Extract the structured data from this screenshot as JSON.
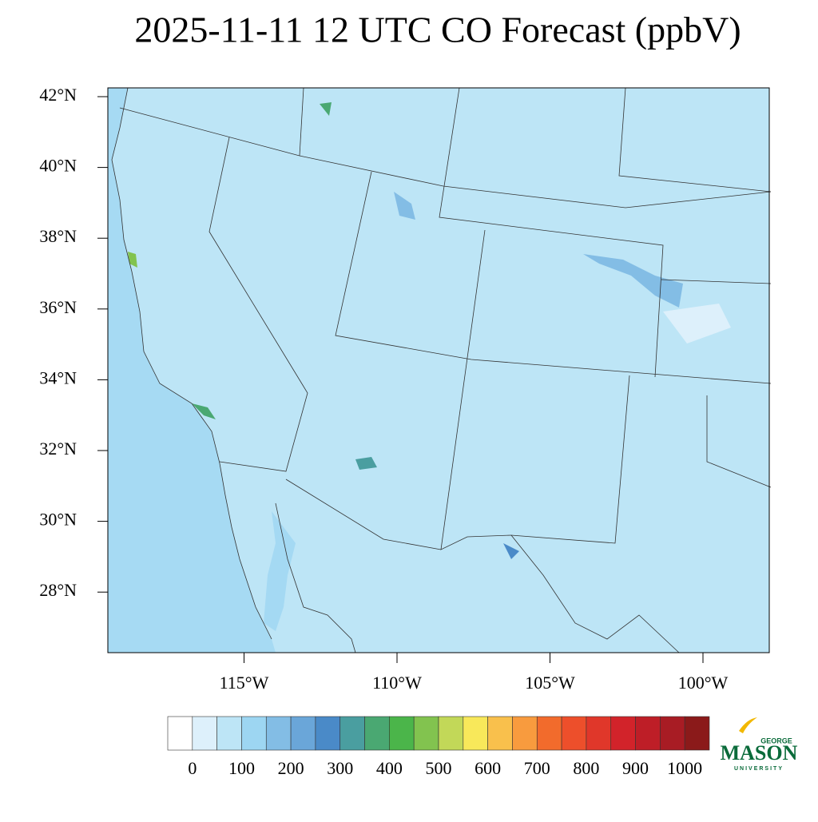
{
  "title": "2025-11-11 12 UTC CO Forecast (ppbV)",
  "map": {
    "lat_ticks": [
      {
        "value": 42,
        "label": "42°N"
      },
      {
        "value": 40,
        "label": "40°N"
      },
      {
        "value": 38,
        "label": "38°N"
      },
      {
        "value": 36,
        "label": "36°N"
      },
      {
        "value": 34,
        "label": "34°N"
      },
      {
        "value": 32,
        "label": "32°N"
      },
      {
        "value": 30,
        "label": "30°N"
      },
      {
        "value": 28,
        "label": "28°N"
      }
    ],
    "lon_ticks": [
      {
        "value": -115,
        "label": "115°W"
      },
      {
        "value": -110,
        "label": "110°W"
      },
      {
        "value": -105,
        "label": "105°W"
      },
      {
        "value": -100,
        "label": "100°W"
      }
    ]
  },
  "colorbar": {
    "colors": [
      "#ffffff",
      "#ddf0fb",
      "#bde5f6",
      "#9dd6f2",
      "#83bde5",
      "#6aa6d9",
      "#4a8ac8",
      "#4a9ea0",
      "#4aa872",
      "#4bb54a",
      "#82c34f",
      "#c2d858",
      "#f8e85a",
      "#f9c04c",
      "#f89b3e",
      "#f26b2c",
      "#ed4f2b",
      "#e0372a",
      "#d2232a",
      "#be1e27",
      "#a81c24",
      "#8b1a1a"
    ],
    "labels": [
      0,
      100,
      200,
      300,
      400,
      500,
      600,
      700,
      800,
      900,
      1000
    ]
  },
  "logo": {
    "top": "GEORGE",
    "main": "MASON",
    "bottom": "UNIVERSITY"
  }
}
